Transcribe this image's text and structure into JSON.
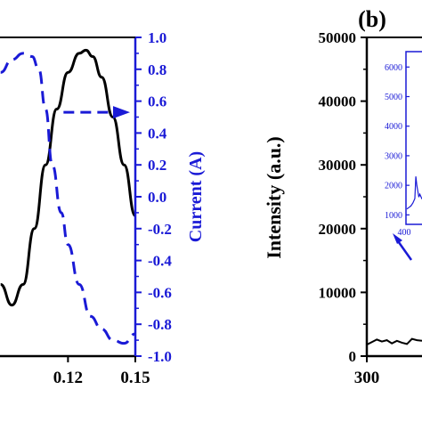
{
  "chart_data": [
    {
      "type": "line",
      "panel": "a",
      "xlabel": "",
      "ylabel_right": "Current (A)",
      "x_ticks": [
        "0.12",
        "0.15"
      ],
      "y_right_ticks": [
        "1.0",
        "0.8",
        "0.6",
        "0.4",
        "0.2",
        "0.0",
        "-0.2",
        "-0.4",
        "-0.6",
        "-0.8",
        "-1.0"
      ],
      "y_right_lim": [
        -1.0,
        1.0
      ],
      "xlim_visible": [
        0.09,
        0.15
      ],
      "series": [
        {
          "style": "solid",
          "color": "#000000",
          "axis": "left (not visible)",
          "x": [
            0.09,
            0.095,
            0.1,
            0.105,
            0.11,
            0.115,
            0.12,
            0.125,
            0.128,
            0.131,
            0.135,
            0.14,
            0.145,
            0.15
          ],
          "y_relative": [
            -0.55,
            -0.68,
            -0.55,
            -0.2,
            0.2,
            0.55,
            0.78,
            0.9,
            0.92,
            0.88,
            0.75,
            0.5,
            0.2,
            -0.12
          ]
        },
        {
          "style": "dashed",
          "color": "#0000cc",
          "axis": "right",
          "x": [
            0.09,
            0.095,
            0.1,
            0.104,
            0.107,
            0.11,
            0.113,
            0.117,
            0.12,
            0.125,
            0.13,
            0.135,
            0.14,
            0.145,
            0.15
          ],
          "y": [
            0.78,
            0.86,
            0.9,
            0.88,
            0.8,
            0.55,
            0.2,
            -0.1,
            -0.3,
            -0.55,
            -0.75,
            -0.83,
            -0.9,
            -0.92,
            -0.86
          ]
        }
      ],
      "annotation_arrow": {
        "direction": "right",
        "color": "#0000cc",
        "y": 0.53,
        "x_from": 0.118,
        "x_to": 0.15
      }
    },
    {
      "type": "line",
      "panel": "b",
      "panel_label": "(b)",
      "ylabel": "Intensity (a.u.)",
      "y_ticks": [
        "50000",
        "40000",
        "30000",
        "20000",
        "10000",
        "0"
      ],
      "ylim": [
        0,
        50000
      ],
      "x_ticks": [
        "300"
      ],
      "series": [
        {
          "color": "#000000",
          "x": [
            300,
            310,
            320,
            330,
            340,
            350,
            360,
            370,
            380,
            390,
            400,
            410
          ],
          "y": [
            1800,
            2200,
            2600,
            2300,
            2500,
            2000,
            2400,
            2100,
            1900,
            2700,
            2500,
            2400
          ]
        }
      ],
      "inset": {
        "y_ticks": [
          "6000",
          "5000",
          "4000",
          "3000",
          "2000",
          "1000"
        ],
        "x_ticks": [
          "400"
        ],
        "ylim": [
          800,
          6400
        ],
        "series": [
          {
            "color": "#0000cc",
            "x": [
              400,
              404,
              408,
              412,
              416,
              418,
              420,
              422,
              424,
              426,
              430,
              434,
              438,
              442,
              446,
              450
            ],
            "y": [
              1200,
              1250,
              1300,
              1400,
              1550,
              2300,
              2000,
              1800,
              1600,
              1700,
              1550,
              1500,
              1480,
              1450,
              1420,
              1400
            ]
          }
        ]
      },
      "inset_arrow": {
        "color": "#0000cc",
        "direction": "down-right"
      }
    }
  ]
}
